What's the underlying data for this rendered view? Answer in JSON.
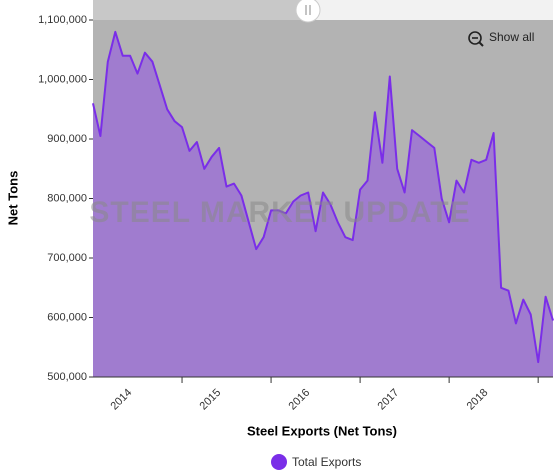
{
  "chart_data": {
    "type": "area",
    "watermark": "STEEL MARKET UPDATE",
    "x_label": "Steel Exports (Net Tons)",
    "y_label": "Net Tons",
    "button": "Show all",
    "categories": [
      null,
      null,
      null,
      null,
      null,
      "2014",
      null,
      null,
      null,
      null,
      null,
      null,
      null,
      null,
      null,
      null,
      null,
      "2015",
      null,
      null,
      null,
      null,
      null,
      null,
      null,
      null,
      null,
      null,
      null,
      "2016",
      null,
      null,
      null,
      null,
      null,
      null,
      null,
      null,
      null,
      null,
      null,
      "2017",
      null,
      null,
      null,
      null,
      null,
      null,
      null,
      null,
      null,
      null,
      null,
      "2018",
      null,
      null,
      null,
      null,
      null,
      null,
      null,
      null,
      null
    ],
    "series": [
      {
        "name": "Total Exports",
        "color": "#7a2ee8",
        "fill": "#a07ccf",
        "values": [
          960000,
          905000,
          1030000,
          1080000,
          1040000,
          1040000,
          1010000,
          1045000,
          1030000,
          990000,
          950000,
          930000,
          920000,
          880000,
          895000,
          850000,
          870000,
          885000,
          820000,
          825000,
          805000,
          760000,
          715000,
          735000,
          780000,
          780000,
          775000,
          795000,
          805000,
          810000,
          745000,
          810000,
          790000,
          760000,
          735000,
          730000,
          815000,
          830000,
          945000,
          860000,
          1005000,
          850000,
          810000,
          915000,
          905000,
          895000,
          885000,
          800000,
          760000,
          830000,
          810000,
          865000,
          860000,
          865000,
          910000,
          650000,
          645000,
          590000,
          630000,
          605000,
          525000,
          635000,
          595000
        ]
      }
    ],
    "ylim": [
      500000,
      1100000
    ],
    "yticks": [
      {
        "value": 500000,
        "label": "500,000"
      },
      {
        "value": 600000,
        "label": "600,000"
      },
      {
        "value": 700000,
        "label": "700,000"
      },
      {
        "value": 800000,
        "label": "800,000"
      },
      {
        "value": 900000,
        "label": "900,000"
      },
      {
        "value": 1000000,
        "label": "1,000,000"
      },
      {
        "value": 1100000,
        "label": "1,100,000"
      }
    ],
    "plot_background": "#b3b3b3"
  }
}
